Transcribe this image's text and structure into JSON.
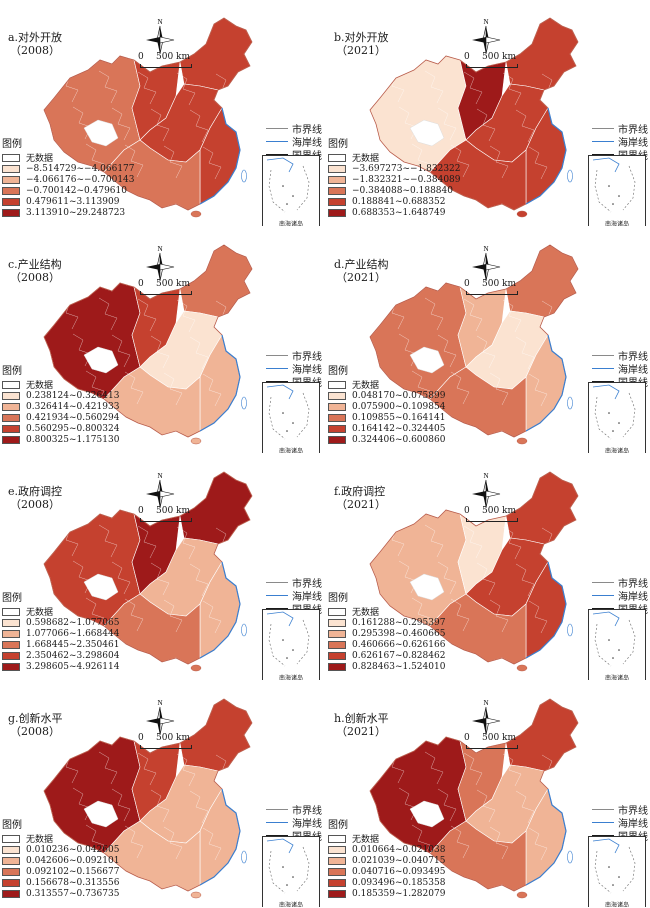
{
  "boundary_legend": [
    "市界线",
    "海岸线",
    "国界线"
  ],
  "boundary_colors": [
    "#8a8a8a",
    "#3a7fd0",
    "#1a1a1a"
  ],
  "legend_title": "图例",
  "no_data_label": "无数据",
  "scale_label": "500 km",
  "scale_zero": "0",
  "north_label": "N",
  "inset_label": "南海诸岛",
  "class_colors": [
    "#fbe3d1",
    "#f0b496",
    "#d97558",
    "#c5412f",
    "#9e1a1a"
  ],
  "panels": [
    {
      "title": "a.对外开放",
      "year": "（2008）",
      "classes": [
        "−8.514729~−4.066177",
        "−4.066176~−0.700143",
        "−0.700142~0.479610",
        "0.479611~3.113909",
        "3.113910~29.248723"
      ],
      "west": 2,
      "center": 3,
      "east": 3,
      "ne": 3,
      "coast": 3,
      "south": 2
    },
    {
      "title": "b.对外开放",
      "year": "（2021）",
      "classes": [
        "−3.697273~−1.832322",
        "−1.832321~−0.384089",
        "−0.384088~0.188840",
        "0.188841~0.688352",
        "0.688353~1.648749"
      ],
      "west": 0,
      "center": 4,
      "east": 3,
      "ne": 3,
      "coast": 3,
      "south": 3
    },
    {
      "title": "c.产业结构",
      "year": "（2008）",
      "classes": [
        "0.238124~0.326413",
        "0.326414~0.421933",
        "0.421934~0.560294",
        "0.560295~0.800324",
        "0.800325~1.175130"
      ],
      "west": 4,
      "center": 3,
      "east": 0,
      "ne": 2,
      "coast": 1,
      "south": 1
    },
    {
      "title": "d.产业结构",
      "year": "（2021）",
      "classes": [
        "0.048170~0.075899",
        "0.075900~0.109854",
        "0.109855~0.164141",
        "0.164142~0.324405",
        "0.324406~0.600860"
      ],
      "west": 2,
      "center": 1,
      "east": 0,
      "ne": 2,
      "coast": 1,
      "south": 2
    },
    {
      "title": "e.政府调控",
      "year": "（2008）",
      "classes": [
        "0.598682~1.077065",
        "1.077066~1.668444",
        "1.668445~2.350461",
        "2.350462~3.298604",
        "3.298605~4.926114"
      ],
      "west": 3,
      "center": 4,
      "east": 1,
      "ne": 4,
      "coast": 1,
      "south": 2
    },
    {
      "title": "f.政府调控",
      "year": "（2021）",
      "classes": [
        "0.161288~0.295397",
        "0.295398~0.460665",
        "0.460666~0.626166",
        "0.626167~0.828462",
        "0.828463~1.524010"
      ],
      "west": 1,
      "center": 0,
      "east": 3,
      "ne": 3,
      "coast": 3,
      "south": 2
    },
    {
      "title": "g.创新水平",
      "year": "（2008）",
      "classes": [
        "0.010236~0.042605",
        "0.042606~0.092101",
        "0.092102~0.156677",
        "0.156678~0.313556",
        "0.313557~0.736735"
      ],
      "west": 4,
      "center": 3,
      "east": 1,
      "ne": 3,
      "coast": 1,
      "south": 1
    },
    {
      "title": "h.创新水平",
      "year": "（2021）",
      "classes": [
        "0.010664~0.021038",
        "0.021039~0.040715",
        "0.040716~0.093495",
        "0.093496~0.185358",
        "0.185359~1.282079"
      ],
      "west": 4,
      "center": 2,
      "east": 1,
      "ne": 3,
      "coast": 1,
      "south": 2
    }
  ]
}
